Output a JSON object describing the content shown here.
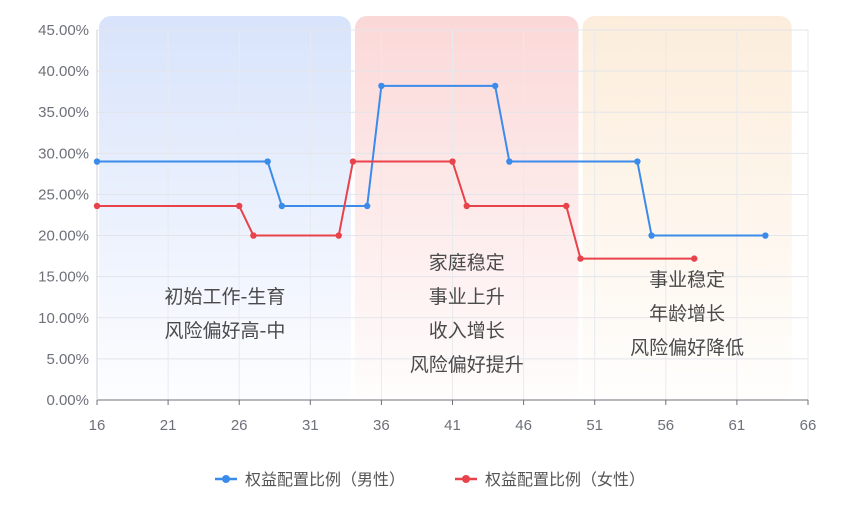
{
  "chart_data": {
    "type": "line",
    "step": true,
    "x_ticks": [
      16,
      21,
      26,
      31,
      36,
      41,
      46,
      51,
      56,
      61,
      66
    ],
    "xlim": [
      16,
      66
    ],
    "y_ticks": [
      "0.00%",
      "5.00%",
      "10.00%",
      "15.00%",
      "20.00%",
      "25.00%",
      "30.00%",
      "35.00%",
      "40.00%",
      "45.00%"
    ],
    "ylim": [
      0,
      45
    ],
    "grid": true,
    "legend_position": "bottom-center",
    "phases": [
      {
        "x_range": [
          16,
          34
        ],
        "color": "#d6e2fb",
        "lines": [
          "初始工作-生育",
          "风险偏好高-中"
        ]
      },
      {
        "x_range": [
          34,
          50
        ],
        "color": "#fbd6d6",
        "lines": [
          "家庭稳定",
          "事业上升",
          "收入增长",
          "风险偏好提升"
        ]
      },
      {
        "x_range": [
          50,
          65
        ],
        "color": "#fcecd9",
        "lines": [
          "事业稳定",
          "年龄增长",
          "风险偏好降低"
        ]
      }
    ],
    "series": [
      {
        "name": "权益配置比例（男性）",
        "color": "#3b8beb",
        "points": [
          [
            16,
            29
          ],
          [
            28,
            29
          ],
          [
            29,
            23.6
          ],
          [
            35,
            23.6
          ],
          [
            36,
            38.2
          ],
          [
            44,
            38.2
          ],
          [
            45,
            29
          ],
          [
            54,
            29
          ],
          [
            55,
            20
          ],
          [
            63,
            20
          ]
        ]
      },
      {
        "name": "权益配置比例（女性）",
        "color": "#e8434b",
        "points": [
          [
            16,
            23.6
          ],
          [
            26,
            23.6
          ],
          [
            27,
            20
          ],
          [
            33,
            20
          ],
          [
            34,
            29
          ],
          [
            41,
            29
          ],
          [
            42,
            23.6
          ],
          [
            49,
            23.6
          ],
          [
            50,
            17.2
          ],
          [
            58,
            17.2
          ]
        ]
      }
    ]
  }
}
